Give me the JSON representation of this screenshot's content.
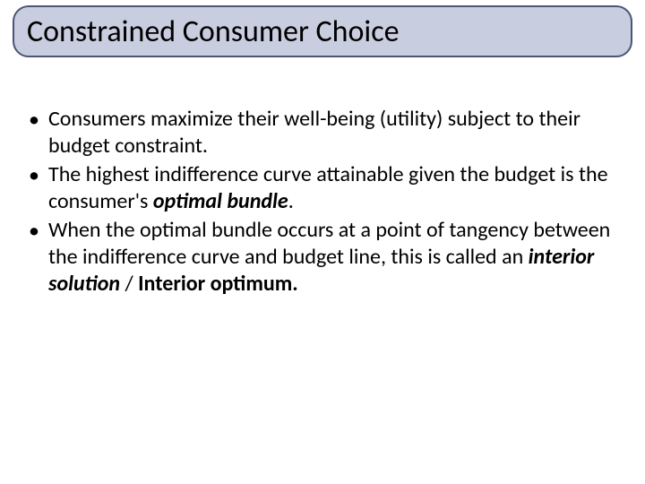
{
  "slide": {
    "title": "Constrained Consumer Choice",
    "title_box": {
      "background_color": "#c9cde0",
      "border_color": "#4a5578",
      "border_radius": 18,
      "title_fontsize": 34,
      "title_color": "#000000"
    },
    "bullets": [
      {
        "pre": "Consumers maximize their well-being (utility) subject to their budget constraint.",
        "emph": "",
        "post": ""
      },
      {
        "pre": "The highest indifference curve attainable given the budget is the consumer's ",
        "emph": "optimal bundle",
        "post": "."
      },
      {
        "pre": "When the optimal bundle occurs at a point of tangency between the indifference curve and budget line, this is called an ",
        "emph": "interior solution",
        "post": " / Interior optimum.",
        "post_bold": true
      }
    ],
    "body_fontsize": 24,
    "body_line_height": 30,
    "body_color": "#000000",
    "background_color": "#ffffff"
  }
}
